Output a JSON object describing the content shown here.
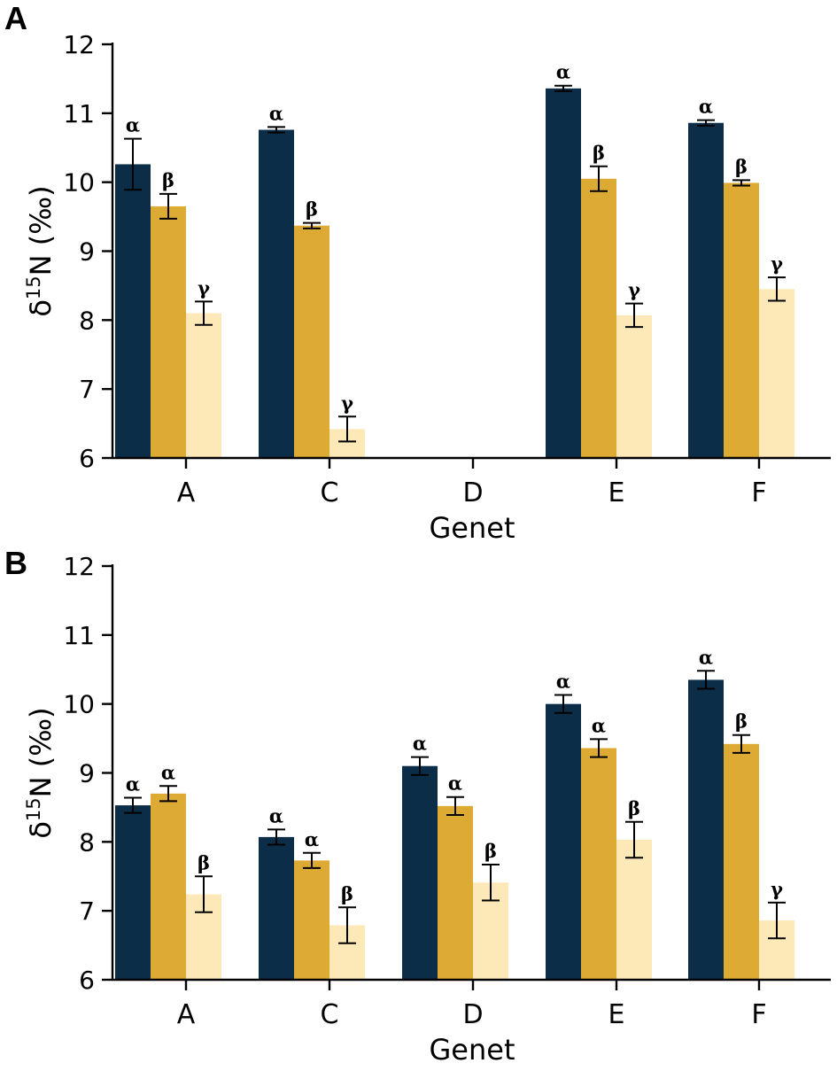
{
  "colors": {
    "series": [
      "#0b2d48",
      "#ddaa33",
      "#fde9b8"
    ]
  },
  "chart_data": [
    {
      "panel_label": "A",
      "type": "bar",
      "xlabel": "Genet",
      "ylabel_prefix": "δ",
      "ylabel_sup": "15",
      "ylabel_suffix": "N (‰)",
      "ylim": [
        6,
        12
      ],
      "yticks": [
        "6",
        "7",
        "8",
        "9",
        "10",
        "11",
        "12"
      ],
      "categories": [
        "A",
        "C",
        "D",
        "E",
        "F"
      ],
      "series": [
        {
          "values": [
            10.26,
            10.76,
            null,
            11.36,
            10.86
          ],
          "errors": [
            0.37,
            0.04,
            null,
            0.04,
            0.04
          ],
          "labels": [
            "α",
            "α",
            "",
            "α",
            "α"
          ]
        },
        {
          "values": [
            9.65,
            9.37,
            null,
            10.05,
            9.99
          ],
          "errors": [
            0.18,
            0.04,
            null,
            0.18,
            0.04
          ],
          "labels": [
            "β",
            "β",
            "",
            "β",
            "β"
          ]
        },
        {
          "values": [
            8.1,
            6.42,
            null,
            8.07,
            8.45
          ],
          "errors": [
            0.17,
            0.18,
            null,
            0.17,
            0.17
          ],
          "labels": [
            "γ",
            "γ",
            "",
            "γ",
            "γ"
          ]
        }
      ]
    },
    {
      "panel_label": "B",
      "type": "bar",
      "xlabel": "Genet",
      "ylabel_prefix": "δ",
      "ylabel_sup": "15",
      "ylabel_suffix": "N (‰)",
      "ylim": [
        6,
        12
      ],
      "yticks": [
        "6",
        "7",
        "8",
        "9",
        "10",
        "11",
        "12"
      ],
      "categories": [
        "A",
        "C",
        "D",
        "E",
        "F"
      ],
      "series": [
        {
          "values": [
            8.53,
            8.07,
            9.1,
            10.0,
            10.35
          ],
          "errors": [
            0.11,
            0.11,
            0.13,
            0.13,
            0.13
          ],
          "labels": [
            "α",
            "α",
            "α",
            "α",
            "α"
          ]
        },
        {
          "values": [
            8.7,
            7.73,
            8.52,
            9.36,
            9.42
          ],
          "errors": [
            0.11,
            0.11,
            0.13,
            0.13,
            0.13
          ],
          "labels": [
            "α",
            "α",
            "α",
            "α",
            "β"
          ]
        },
        {
          "values": [
            7.24,
            6.79,
            7.41,
            8.03,
            6.86
          ],
          "errors": [
            0.26,
            0.26,
            0.26,
            0.26,
            0.26
          ],
          "labels": [
            "β",
            "β",
            "β",
            "β",
            "γ"
          ]
        }
      ]
    }
  ]
}
